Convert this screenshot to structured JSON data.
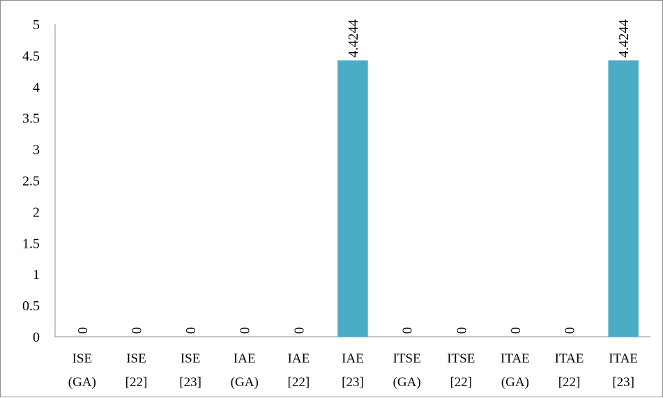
{
  "chart_data": {
    "type": "bar",
    "categories": [
      [
        "ISE",
        "(GA)"
      ],
      [
        "ISE",
        "[22]"
      ],
      [
        "ISE",
        "[23]"
      ],
      [
        "IAE",
        "(GA)"
      ],
      [
        "IAE",
        "[22]"
      ],
      [
        "IAE",
        "[23]"
      ],
      [
        "ITSE",
        "(GA)"
      ],
      [
        "ITSE",
        "[22]"
      ],
      [
        "ITAE",
        "(GA)"
      ],
      [
        "ITAE",
        "[22]"
      ],
      [
        "ITAE",
        "[23]"
      ]
    ],
    "values": [
      0,
      0,
      0,
      0,
      0,
      4.4244,
      0,
      0,
      0,
      0,
      4.4244
    ],
    "data_labels": [
      "0",
      "0",
      "0",
      "0",
      "0",
      "4.4244",
      "0",
      "0",
      "0",
      "0",
      "4.4244"
    ],
    "y_ticks": [
      "0",
      "0.5",
      "1",
      "1.5",
      "2",
      "2.5",
      "3",
      "3.5",
      "4",
      "4.5",
      "5"
    ],
    "ylim": [
      0,
      5
    ],
    "title": "",
    "xlabel": "",
    "ylabel": "",
    "grid": false,
    "legend": "none",
    "colors": {
      "bar": "#4bacc6",
      "axis": "#8c8c8c",
      "text": "#000000"
    }
  }
}
